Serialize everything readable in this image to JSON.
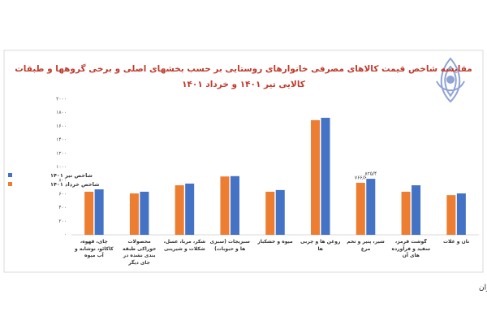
{
  "chart_data": {
    "type": "bar",
    "title": [
      "مقایسه شاخص قیمت کالاهای مصرفی خانوارهای روستایی بر حسب بخشهای اصلی و برخی گروهها و طبقات",
      "کالایی تیر ۱۴۰۱ و خرداد ۱۴۰۱"
    ],
    "categories": [
      "چای، قهوه، کاکائو، نوشابه و آب میوه",
      "محصولات خوراکی طبقه بندی نشده در جای دیگر",
      "شکر، مربا، عسل، شکلات و شیرینی",
      "سبزیجات (سبزی ها و حبوبات)",
      "میوه و خشکبار",
      "روغن ها و چربی ها",
      "شیر، پنیر و تخم مرغ",
      "گوشت قرمز، سفید و فرآورده های آن",
      "نان و غلات"
    ],
    "series": [
      {
        "name": "شاخص خرداد ۱۴۰۱",
        "color": "#ed7d31",
        "values": [
          635,
          610,
          730,
          860,
          635,
          1690,
          766.6,
          635,
          585
        ],
        "value_labels": [
          null,
          null,
          null,
          null,
          null,
          null,
          "۷۶۶/۶",
          null,
          null
        ]
      },
      {
        "name": "شاخص تیر ۱۴۰۱",
        "color": "#4472c4",
        "values": [
          670,
          635,
          755,
          865,
          660,
          1725,
          825.4,
          730,
          610
        ],
        "value_labels": [
          null,
          null,
          null,
          null,
          null,
          null,
          "۸۲۵/۴",
          null,
          null
        ]
      }
    ],
    "ylim": [
      0,
      2000
    ],
    "yticks": [
      {
        "value": 0,
        "label": "۰"
      },
      {
        "value": 200,
        "label": "۲۰۰"
      },
      {
        "value": 400,
        "label": "۴۰۰"
      },
      {
        "value": 600,
        "label": "۶۰۰"
      },
      {
        "value": 800,
        "label": "۸۰۰"
      },
      {
        "value": 1000,
        "label": "۱۰۰۰"
      },
      {
        "value": 1200,
        "label": "۱۲۰۰"
      },
      {
        "value": 1400,
        "label": "۱۴۰۰"
      },
      {
        "value": 1600,
        "label": "۱۶۰۰"
      },
      {
        "value": 1800,
        "label": "۱۸۰۰"
      },
      {
        "value": 2000,
        "label": "۲۰۰۰"
      }
    ],
    "grid": false,
    "legend": "left",
    "source": "منبع:سایت مرکز آمار ایران"
  }
}
